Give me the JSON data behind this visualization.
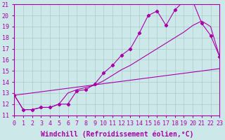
{
  "xlabel": "Windchill (Refroidissement éolien,°C)",
  "xlim": [
    0,
    23
  ],
  "ylim": [
    11,
    21
  ],
  "yticks": [
    11,
    12,
    13,
    14,
    15,
    16,
    17,
    18,
    19,
    20,
    21
  ],
  "xticks": [
    0,
    1,
    2,
    3,
    4,
    5,
    6,
    7,
    8,
    9,
    10,
    11,
    12,
    13,
    14,
    15,
    16,
    17,
    18,
    19,
    20,
    21,
    22,
    23
  ],
  "background_color": "#cce8e8",
  "grid_color": "#aacccc",
  "line_color": "#aa00aa",
  "line1_x": [
    0,
    1,
    2,
    3,
    4,
    5,
    6,
    7,
    8,
    9,
    10,
    11,
    12,
    13,
    14,
    15,
    16,
    17,
    18,
    19,
    20,
    21,
    22,
    23
  ],
  "line1_y": [
    12.8,
    11.5,
    11.5,
    11.7,
    11.7,
    12.0,
    12.0,
    13.2,
    13.3,
    13.8,
    14.8,
    15.5,
    16.4,
    17.0,
    18.4,
    20.0,
    20.4,
    19.1,
    20.5,
    21.3,
    21.3,
    19.3,
    18.2,
    16.3
  ],
  "line2_x": [
    0,
    1,
    2,
    3,
    4,
    5,
    6,
    7,
    8,
    9,
    10,
    11,
    12,
    13,
    14,
    15,
    16,
    17,
    18,
    19,
    20,
    21,
    22,
    23
  ],
  "line2_y": [
    12.8,
    11.5,
    11.5,
    11.7,
    11.7,
    12.0,
    13.0,
    13.3,
    13.5,
    13.7,
    14.1,
    14.6,
    15.1,
    15.5,
    16.0,
    16.5,
    17.0,
    17.5,
    18.0,
    18.5,
    19.1,
    19.5,
    19.0,
    16.3
  ],
  "line3_x": [
    0,
    23
  ],
  "line3_y": [
    12.8,
    15.2
  ],
  "font_family": "monospace",
  "tick_fontsize": 6,
  "label_fontsize": 7
}
